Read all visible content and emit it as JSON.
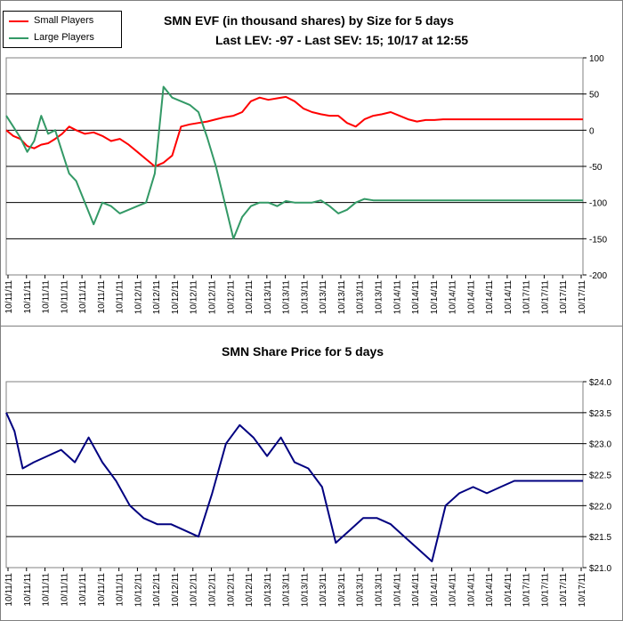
{
  "chart_data": [
    {
      "type": "line",
      "title": "SMN EVF (in thousand shares) by Size for 5 days",
      "subtitle": "Last LEV: -97 - Last SEV: 15; 10/17 at 12:55",
      "ylim": [
        -200,
        100
      ],
      "yticks": [
        "100",
        "50",
        "0",
        "-50",
        "-100",
        "-150",
        "-200"
      ],
      "xtick_labels": [
        "10/11/11",
        "10/11/11",
        "10/11/11",
        "10/11/11",
        "10/11/11",
        "10/11/11",
        "10/11/11",
        "10/12/11",
        "10/12/11",
        "10/12/11",
        "10/12/11",
        "10/12/11",
        "10/12/11",
        "10/12/11",
        "10/13/11",
        "10/13/11",
        "10/13/11",
        "10/13/11",
        "10/13/11",
        "10/13/11",
        "10/13/11",
        "10/14/11",
        "10/14/11",
        "10/14/11",
        "10/14/11",
        "10/14/11",
        "10/14/11",
        "10/14/11",
        "10/17/11",
        "10/17/11",
        "10/17/11",
        "10/17/11"
      ],
      "grid": true,
      "legend_position": "top-left",
      "series": [
        {
          "name": "Small Players",
          "color": "#ff0000",
          "x": [
            0,
            4,
            8,
            12,
            16,
            20,
            24,
            28,
            32,
            36,
            40,
            45,
            50,
            55,
            60,
            65,
            70,
            75,
            80,
            85,
            90,
            95,
            100,
            105,
            110,
            115,
            120,
            125,
            130,
            135,
            140,
            145,
            150,
            155,
            160,
            165,
            170,
            175,
            180,
            185,
            190,
            195,
            200,
            205,
            210,
            215,
            220,
            225,
            230,
            235,
            240,
            245,
            250,
            255,
            260,
            265,
            270,
            275,
            280,
            285,
            290,
            295,
            300,
            305,
            310,
            315,
            320,
            325,
            330
          ],
          "values": [
            0,
            -8,
            -12,
            -22,
            -25,
            -20,
            -18,
            -12,
            -5,
            5,
            0,
            -5,
            -3,
            -8,
            -15,
            -12,
            -20,
            -30,
            -40,
            -50,
            -45,
            -35,
            5,
            8,
            10,
            12,
            15,
            18,
            20,
            25,
            40,
            45,
            42,
            44,
            46,
            40,
            30,
            25,
            22,
            20,
            20,
            10,
            5,
            15,
            20,
            22,
            25,
            20,
            15,
            12,
            14,
            14,
            15,
            15,
            15,
            15,
            15,
            15,
            15,
            15,
            15,
            15,
            15,
            15,
            15,
            15,
            15,
            15,
            15
          ]
        },
        {
          "name": "Large Players",
          "color": "#339966",
          "x": [
            0,
            4,
            8,
            12,
            16,
            20,
            24,
            28,
            32,
            36,
            40,
            45,
            50,
            55,
            60,
            65,
            70,
            75,
            80,
            85,
            90,
            95,
            100,
            105,
            110,
            115,
            120,
            125,
            130,
            135,
            140,
            145,
            150,
            155,
            160,
            165,
            170,
            175,
            180,
            185,
            190,
            195,
            200,
            205,
            210,
            215,
            220,
            225,
            230,
            235,
            240,
            245,
            250,
            255,
            260,
            265,
            270,
            275,
            280,
            285,
            290,
            295,
            300,
            305,
            310,
            315,
            320,
            325,
            330
          ],
          "values": [
            20,
            5,
            -10,
            -30,
            -15,
            20,
            -5,
            0,
            -30,
            -60,
            -70,
            -100,
            -130,
            -100,
            -105,
            -115,
            -110,
            -105,
            -100,
            -60,
            60,
            45,
            40,
            35,
            25,
            -10,
            -50,
            -100,
            -150,
            -120,
            -105,
            -100,
            -100,
            -105,
            -98,
            -100,
            -100,
            -100,
            -97,
            -105,
            -115,
            -110,
            -100,
            -95,
            -97,
            -97,
            -97,
            -97,
            -97,
            -97,
            -97,
            -97,
            -97,
            -97,
            -97,
            -97,
            -97,
            -97,
            -97,
            -97,
            -97,
            -97,
            -97,
            -97,
            -97,
            -97,
            -97,
            -97,
            -97
          ]
        }
      ]
    },
    {
      "type": "line",
      "title": "SMN Share Price for 5 days",
      "ylim": [
        21.0,
        24.0
      ],
      "yticks": [
        "$24.0",
        "$23.5",
        "$23.0",
        "$22.5",
        "$22.0",
        "$21.5",
        "$21.0"
      ],
      "xtick_labels": [
        "10/11/11",
        "10/11/11",
        "10/11/11",
        "10/11/11",
        "10/11/11",
        "10/11/11",
        "10/11/11",
        "10/12/11",
        "10/12/11",
        "10/12/11",
        "10/12/11",
        "10/12/11",
        "10/12/11",
        "10/12/11",
        "10/13/11",
        "10/13/11",
        "10/13/11",
        "10/13/11",
        "10/13/11",
        "10/13/11",
        "10/13/11",
        "10/14/11",
        "10/14/11",
        "10/14/11",
        "10/14/11",
        "10/14/11",
        "10/14/11",
        "10/14/11",
        "10/17/11",
        "10/17/11",
        "10/17/11",
        "10/17/11"
      ],
      "grid": true,
      "series": [
        {
          "color": "#000080",
          "x": [
            0,
            3,
            6,
            10,
            15,
            20,
            25,
            30,
            35,
            40,
            45,
            50,
            55,
            60,
            65,
            70,
            75,
            80,
            85,
            90,
            95,
            100,
            105,
            110,
            115,
            120,
            125,
            130,
            135,
            140,
            145,
            150,
            155,
            160,
            165,
            170,
            175,
            180,
            185,
            190,
            195,
            200,
            205,
            210
          ],
          "values": [
            23.5,
            23.2,
            22.6,
            22.7,
            22.8,
            22.9,
            22.7,
            23.1,
            22.7,
            22.4,
            22.0,
            21.8,
            21.7,
            21.7,
            21.6,
            21.5,
            22.2,
            23.0,
            23.3,
            23.1,
            22.8,
            23.1,
            22.7,
            22.6,
            22.3,
            21.4,
            21.6,
            21.8,
            21.8,
            21.7,
            21.5,
            21.3,
            21.1,
            22.0,
            22.2,
            22.3,
            22.2,
            22.3,
            22.4,
            22.4,
            22.4,
            22.4,
            22.4,
            22.4
          ]
        }
      ]
    }
  ]
}
